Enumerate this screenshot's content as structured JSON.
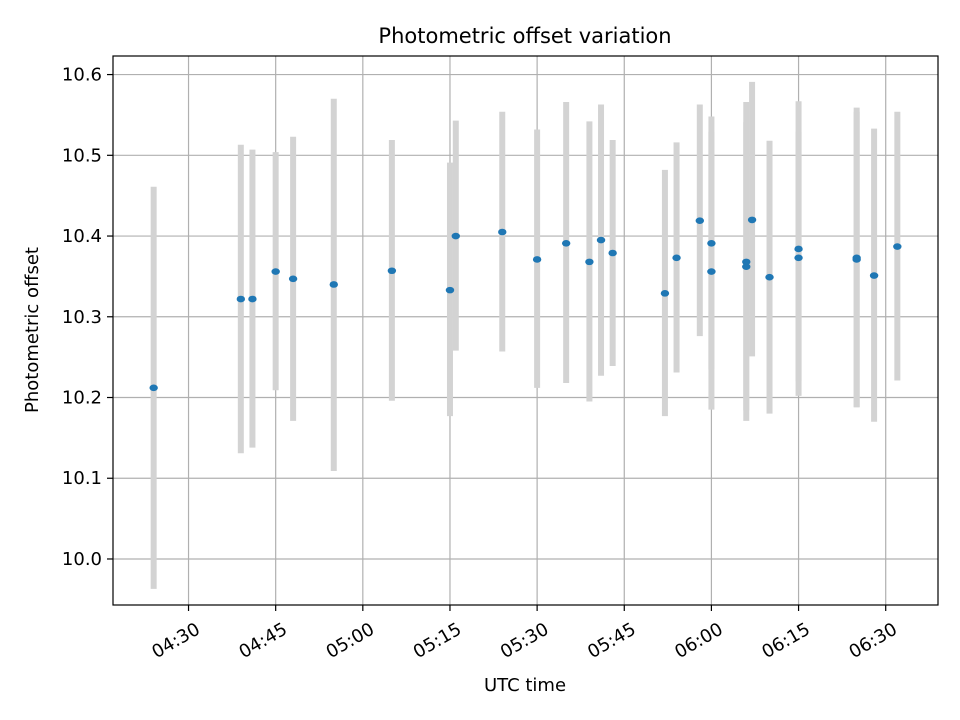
{
  "chart_data": {
    "type": "scatter",
    "title": "Photometric offset variation",
    "xlabel": "UTC time",
    "ylabel": "Photometric offset",
    "grid": true,
    "xlim": [
      "04:17",
      "06:39"
    ],
    "ylim": [
      9.943,
      10.623
    ],
    "x_ticks": [
      "04:30",
      "04:45",
      "05:00",
      "05:15",
      "05:30",
      "05:45",
      "06:00",
      "06:15",
      "06:30"
    ],
    "y_ticks": [
      "10.0",
      "10.1",
      "10.2",
      "10.3",
      "10.4",
      "10.5",
      "10.6"
    ],
    "colors": {
      "point": "#1f77b4",
      "errorbar": "#d3d3d3",
      "grid": "#b0b0b0"
    },
    "points": [
      {
        "x": "04:24",
        "y": 10.212,
        "yerr_low": 9.963,
        "yerr_high": 10.461
      },
      {
        "x": "04:39",
        "y": 10.322,
        "yerr_low": 10.131,
        "yerr_high": 10.513
      },
      {
        "x": "04:41",
        "y": 10.322,
        "yerr_low": 10.138,
        "yerr_high": 10.507
      },
      {
        "x": "04:45",
        "y": 10.356,
        "yerr_low": 10.209,
        "yerr_high": 10.504
      },
      {
        "x": "04:48",
        "y": 10.347,
        "yerr_low": 10.171,
        "yerr_high": 10.523
      },
      {
        "x": "04:55",
        "y": 10.34,
        "yerr_low": 10.109,
        "yerr_high": 10.57
      },
      {
        "x": "05:05",
        "y": 10.357,
        "yerr_low": 10.196,
        "yerr_high": 10.519
      },
      {
        "x": "05:15",
        "y": 10.333,
        "yerr_low": 10.177,
        "yerr_high": 10.491
      },
      {
        "x": "05:16",
        "y": 10.4,
        "yerr_low": 10.258,
        "yerr_high": 10.543
      },
      {
        "x": "05:24",
        "y": 10.405,
        "yerr_low": 10.257,
        "yerr_high": 10.554
      },
      {
        "x": "05:30",
        "y": 10.371,
        "yerr_low": 10.212,
        "yerr_high": 10.532
      },
      {
        "x": "05:35",
        "y": 10.391,
        "yerr_low": 10.218,
        "yerr_high": 10.566
      },
      {
        "x": "05:39",
        "y": 10.368,
        "yerr_low": 10.195,
        "yerr_high": 10.542
      },
      {
        "x": "05:41",
        "y": 10.395,
        "yerr_low": 10.227,
        "yerr_high": 10.563
      },
      {
        "x": "05:43",
        "y": 10.379,
        "yerr_low": 10.239,
        "yerr_high": 10.519
      },
      {
        "x": "05:52",
        "y": 10.329,
        "yerr_low": 10.177,
        "yerr_high": 10.482
      },
      {
        "x": "05:54",
        "y": 10.373,
        "yerr_low": 10.231,
        "yerr_high": 10.516
      },
      {
        "x": "05:58",
        "y": 10.419,
        "yerr_low": 10.276,
        "yerr_high": 10.563
      },
      {
        "x": "06:00",
        "y": 10.391,
        "yerr_low": 10.235,
        "yerr_high": 10.548
      },
      {
        "x": "06:00",
        "y": 10.356,
        "yerr_low": 10.185,
        "yerr_high": 10.529
      },
      {
        "x": "06:06",
        "y": 10.362,
        "yerr_low": 10.184,
        "yerr_high": 10.541
      },
      {
        "x": "06:06",
        "y": 10.368,
        "yerr_low": 10.171,
        "yerr_high": 10.566
      },
      {
        "x": "06:07",
        "y": 10.42,
        "yerr_low": 10.251,
        "yerr_high": 10.591
      },
      {
        "x": "06:10",
        "y": 10.349,
        "yerr_low": 10.18,
        "yerr_high": 10.518
      },
      {
        "x": "06:15",
        "y": 10.384,
        "yerr_low": 10.202,
        "yerr_high": 10.567
      },
      {
        "x": "06:15",
        "y": 10.373,
        "yerr_low": 10.22,
        "yerr_high": 10.529
      },
      {
        "x": "06:25",
        "y": 10.371,
        "yerr_low": 10.188,
        "yerr_high": 10.554
      },
      {
        "x": "06:25",
        "y": 10.373,
        "yerr_low": 10.188,
        "yerr_high": 10.559
      },
      {
        "x": "06:28",
        "y": 10.351,
        "yerr_low": 10.17,
        "yerr_high": 10.533
      },
      {
        "x": "06:32",
        "y": 10.387,
        "yerr_low": 10.221,
        "yerr_high": 10.554
      }
    ]
  }
}
